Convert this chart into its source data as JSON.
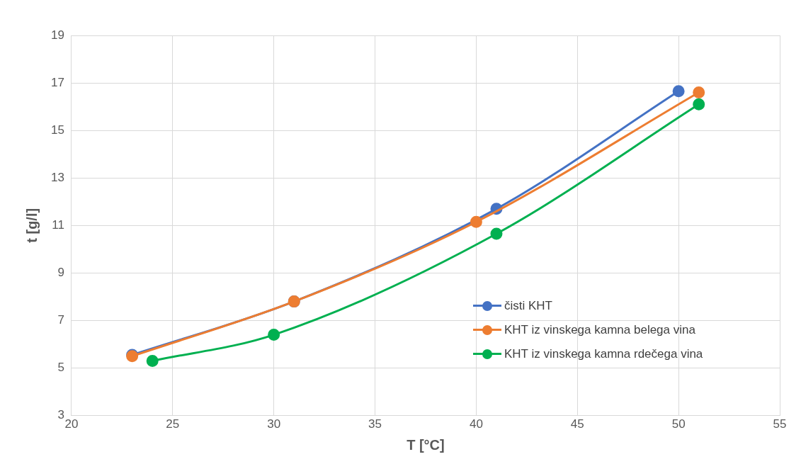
{
  "chart_data": {
    "type": "line",
    "xlabel": "T [°C]",
    "ylabel": "t [g/l]",
    "xlim": [
      20,
      55
    ],
    "xticks": [
      20,
      25,
      30,
      35,
      40,
      45,
      50,
      55
    ],
    "ylim": [
      3,
      19
    ],
    "yticks": [
      3,
      5,
      7,
      9,
      11,
      13,
      15,
      17,
      19
    ],
    "grid": true,
    "legend": "right",
    "marker": "circle",
    "line_style": "solid",
    "series": [
      {
        "name": "čisti KHT",
        "color": "#4472c4",
        "x": [
          23,
          31,
          41,
          50
        ],
        "values": [
          5.55,
          7.8,
          11.7,
          16.65
        ]
      },
      {
        "name": "KHT iz vinskega kamna belega vina",
        "color": "#ed7d31",
        "x": [
          23,
          31,
          40,
          51
        ],
        "values": [
          5.5,
          7.8,
          11.15,
          16.6
        ]
      },
      {
        "name": "KHT iz vinskega kamna rdečega vina",
        "color": "#00b050",
        "x": [
          24,
          30,
          41,
          51
        ],
        "values": [
          5.3,
          6.4,
          10.65,
          16.1
        ]
      }
    ]
  }
}
